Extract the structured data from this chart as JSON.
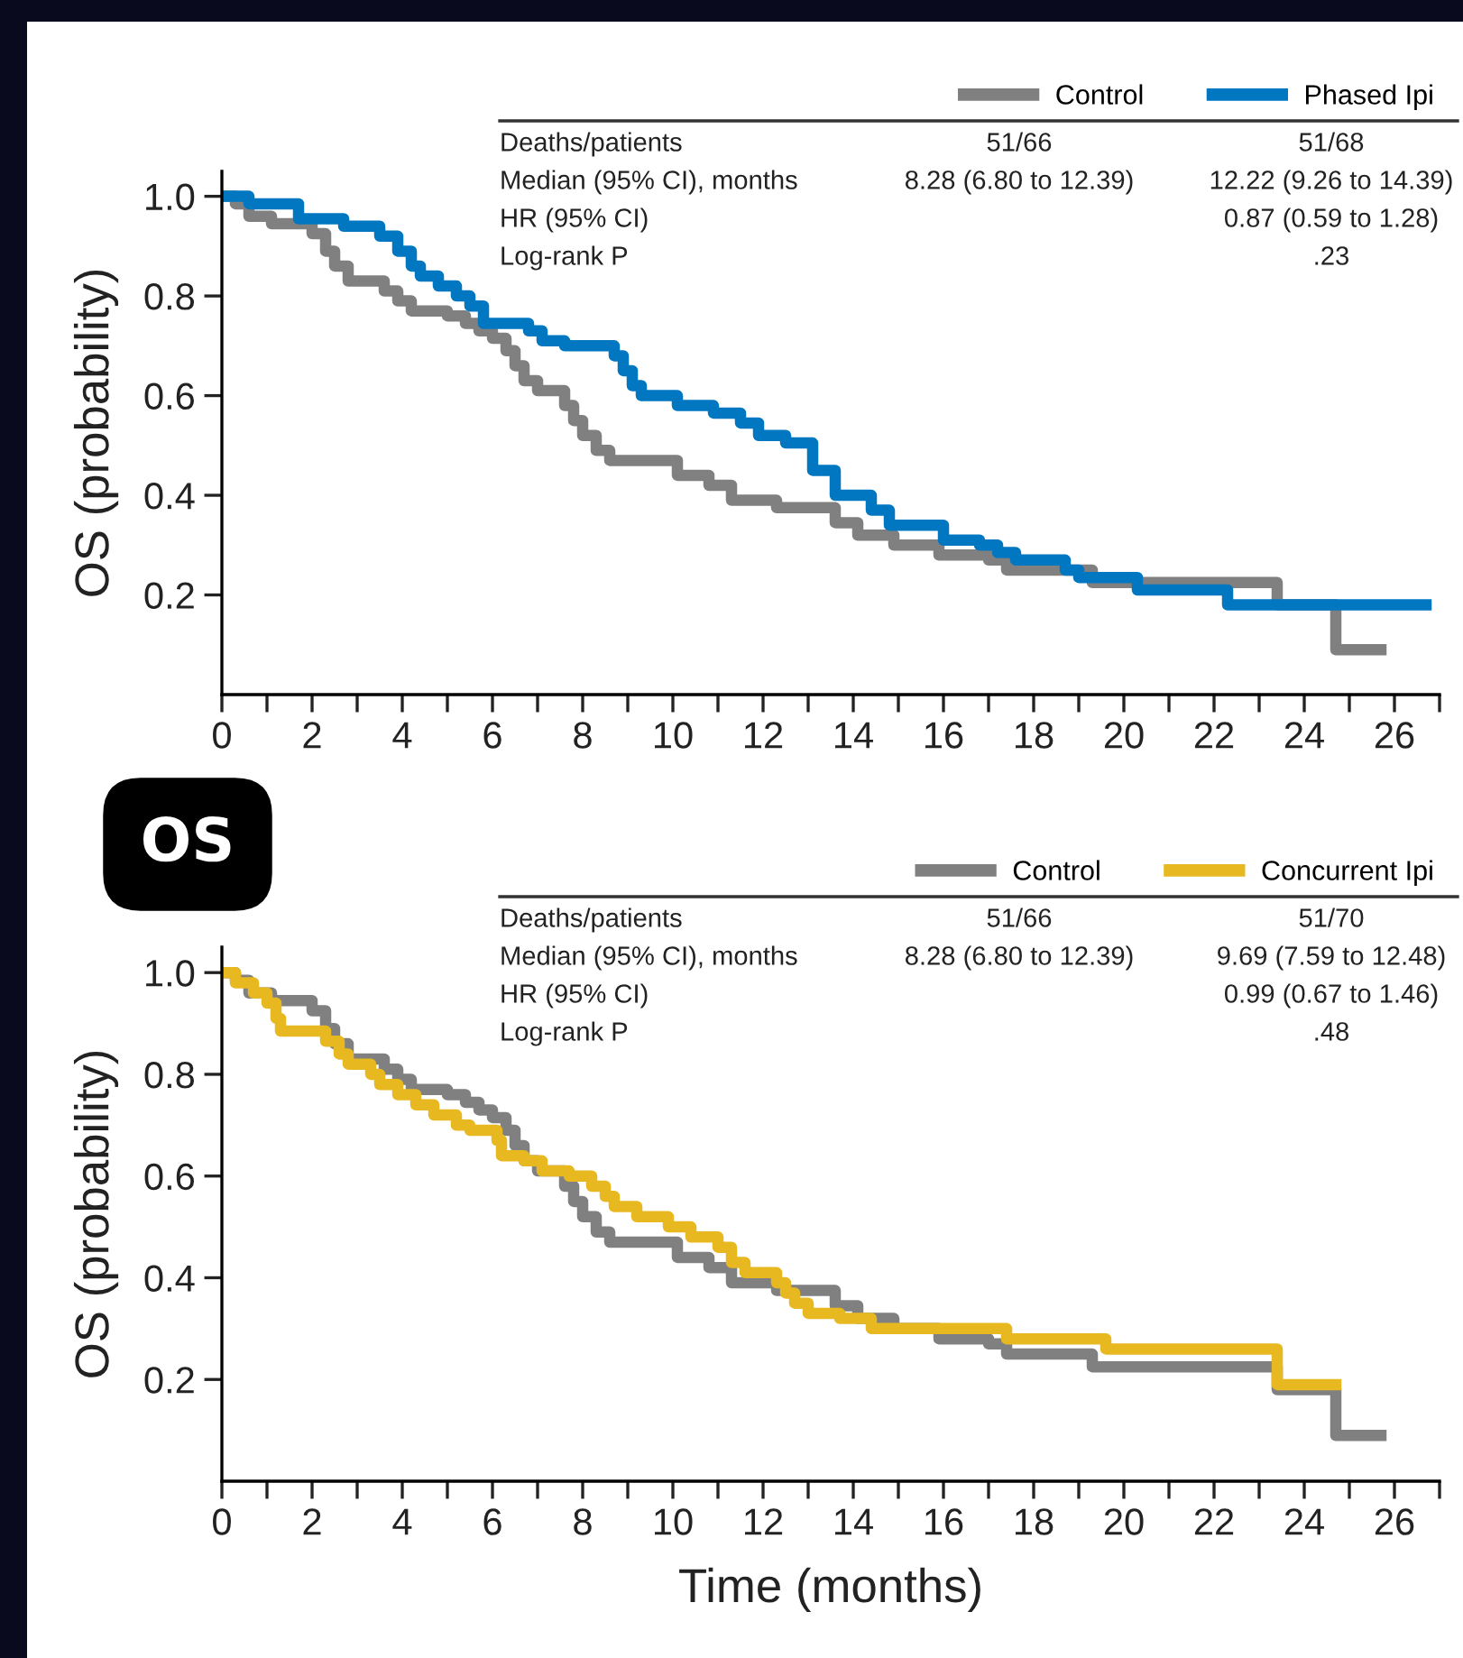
{
  "chart_data": [
    {
      "type": "step",
      "ylabel": "OS (probability)",
      "legend": "top right",
      "xlim": [
        0,
        27
      ],
      "ylim": [
        0,
        1.05
      ],
      "xticks": [
        0,
        {
          "value": 1,
          "label": null
        },
        2,
        {
          "value": 3,
          "label": null
        },
        4,
        {
          "value": 5,
          "label": null
        },
        6,
        {
          "value": 7,
          "label": null
        },
        8,
        {
          "value": 9,
          "label": null
        },
        10,
        {
          "value": 11,
          "label": null
        },
        12,
        {
          "value": 13,
          "label": null
        },
        14,
        {
          "value": 15,
          "label": null
        },
        16,
        {
          "value": 17,
          "label": null
        },
        18,
        {
          "value": 19,
          "label": null
        },
        20,
        {
          "value": 21,
          "label": null
        },
        22,
        {
          "value": 23,
          "label": null
        },
        24,
        {
          "value": 25,
          "label": null
        },
        26,
        {
          "value": 27,
          "label": null
        }
      ],
      "yticks": [
        {
          "value": 0.2,
          "label": "0.2"
        },
        {
          "value": 0.4,
          "label": "0.4"
        },
        {
          "value": 0.6,
          "label": "0.6"
        },
        {
          "value": 0.8,
          "label": "0.8"
        },
        {
          "value": 1.0,
          "label": "1.0"
        }
      ],
      "series": [
        {
          "name": "Control",
          "color": "#808080",
          "x": [
            0,
            0.3,
            0.6,
            1.1,
            2.0,
            2.3,
            2.5,
            2.8,
            3.6,
            3.9,
            4.2,
            5.0,
            5.4,
            5.7,
            6.0,
            6.3,
            6.5,
            6.7,
            7.0,
            7.6,
            7.8,
            8.0,
            8.3,
            8.6,
            10.1,
            10.8,
            11.3,
            12.3,
            13.6,
            14.1,
            14.9,
            15.9,
            17.0,
            17.4,
            19.3,
            23.4,
            24.7,
            25.7
          ],
          "values": [
            1.0,
            0.985,
            0.96,
            0.945,
            0.925,
            0.89,
            0.86,
            0.83,
            0.81,
            0.79,
            0.77,
            0.76,
            0.745,
            0.73,
            0.715,
            0.69,
            0.66,
            0.63,
            0.61,
            0.58,
            0.55,
            0.52,
            0.49,
            0.47,
            0.44,
            0.42,
            0.39,
            0.375,
            0.345,
            0.32,
            0.3,
            0.28,
            0.27,
            0.25,
            0.225,
            0.18,
            0.09,
            0.09
          ]
        },
        {
          "name": "Phased Ipi",
          "color": "#0077c0",
          "x": [
            0,
            0.6,
            1.7,
            2.7,
            3.5,
            3.9,
            4.2,
            4.4,
            4.8,
            5.2,
            5.5,
            5.8,
            6.8,
            7.1,
            7.6,
            8.7,
            8.9,
            9.1,
            9.3,
            10.1,
            10.9,
            11.5,
            11.9,
            12.5,
            13.1,
            13.6,
            14.4,
            14.8,
            16.0,
            16.8,
            17.2,
            17.6,
            18.7,
            19.0,
            20.3,
            22.3,
            26.7
          ],
          "values": [
            1.0,
            0.985,
            0.955,
            0.94,
            0.92,
            0.89,
            0.86,
            0.84,
            0.82,
            0.8,
            0.78,
            0.745,
            0.73,
            0.71,
            0.7,
            0.68,
            0.65,
            0.62,
            0.6,
            0.58,
            0.565,
            0.545,
            0.52,
            0.505,
            0.45,
            0.4,
            0.37,
            0.34,
            0.31,
            0.3,
            0.285,
            0.27,
            0.25,
            0.235,
            0.21,
            0.18,
            0.18
          ]
        }
      ],
      "annotations": [
        "Deaths/patients",
        "51/66",
        "51/68",
        "Median (95% CI), months",
        "8.28 (6.80 to 12.39)",
        "12.22 (9.26 to 14.39)",
        "HR (95% CI)",
        "0.87 (0.59 to 1.28)",
        "Log-rank P",
        ".23"
      ]
    },
    {
      "type": "step",
      "title": "OS",
      "ylabel": "OS (probability)",
      "xlabel": "Time (months)",
      "legend": "top right",
      "xlim": [
        0,
        27
      ],
      "ylim": [
        0,
        1.05
      ],
      "xticks": [
        0,
        {
          "value": 1,
          "label": null
        },
        2,
        {
          "value": 3,
          "label": null
        },
        4,
        {
          "value": 5,
          "label": null
        },
        6,
        {
          "value": 7,
          "label": null
        },
        8,
        {
          "value": 9,
          "label": null
        },
        10,
        {
          "value": 11,
          "label": null
        },
        12,
        {
          "value": 13,
          "label": null
        },
        14,
        {
          "value": 15,
          "label": null
        },
        16,
        {
          "value": 17,
          "label": null
        },
        18,
        {
          "value": 19,
          "label": null
        },
        20,
        {
          "value": 21,
          "label": null
        },
        22,
        {
          "value": 23,
          "label": null
        },
        24,
        {
          "value": 25,
          "label": null
        },
        26,
        {
          "value": 27,
          "label": null
        }
      ],
      "yticks": [
        {
          "value": 0.2,
          "label": "0.2"
        },
        {
          "value": 0.4,
          "label": "0.4"
        },
        {
          "value": 0.6,
          "label": "0.6"
        },
        {
          "value": 0.8,
          "label": "0.8"
        },
        {
          "value": 1.0,
          "label": "1.0"
        }
      ],
      "series": [
        {
          "name": "Control",
          "color": "#808080",
          "x": [
            0,
            0.3,
            0.6,
            1.1,
            2.0,
            2.3,
            2.5,
            2.8,
            3.6,
            3.9,
            4.2,
            5.0,
            5.4,
            5.7,
            6.0,
            6.3,
            6.5,
            6.7,
            7.0,
            7.6,
            7.8,
            8.0,
            8.3,
            8.6,
            10.1,
            10.8,
            11.3,
            12.3,
            13.6,
            14.1,
            14.9,
            15.9,
            17.0,
            17.4,
            19.3,
            23.4,
            24.7,
            25.7
          ],
          "values": [
            1.0,
            0.985,
            0.96,
            0.945,
            0.925,
            0.89,
            0.86,
            0.83,
            0.81,
            0.79,
            0.77,
            0.76,
            0.745,
            0.73,
            0.715,
            0.69,
            0.66,
            0.63,
            0.61,
            0.58,
            0.55,
            0.52,
            0.49,
            0.47,
            0.44,
            0.42,
            0.39,
            0.375,
            0.345,
            0.32,
            0.3,
            0.28,
            0.27,
            0.25,
            0.225,
            0.18,
            0.09,
            0.09
          ]
        },
        {
          "name": "Concurrent Ipi",
          "color": "#e8b820",
          "x": [
            0,
            0.3,
            0.7,
            1.0,
            1.2,
            1.3,
            2.3,
            2.6,
            2.8,
            3.3,
            3.5,
            3.9,
            4.3,
            4.7,
            5.2,
            5.5,
            6.1,
            6.2,
            6.7,
            7.1,
            7.7,
            8.2,
            8.5,
            8.7,
            9.2,
            9.9,
            10.4,
            11.0,
            11.3,
            11.6,
            12.3,
            12.5,
            12.7,
            13.0,
            13.7,
            14.4,
            17.4,
            19.6,
            23.4,
            24.7
          ],
          "values": [
            1.0,
            0.98,
            0.96,
            0.94,
            0.91,
            0.885,
            0.865,
            0.84,
            0.82,
            0.8,
            0.78,
            0.76,
            0.74,
            0.72,
            0.7,
            0.69,
            0.67,
            0.64,
            0.63,
            0.61,
            0.6,
            0.58,
            0.56,
            0.54,
            0.52,
            0.5,
            0.48,
            0.46,
            0.43,
            0.41,
            0.39,
            0.37,
            0.35,
            0.33,
            0.32,
            0.3,
            0.28,
            0.26,
            0.19,
            0.19
          ]
        }
      ],
      "annotations": [
        "Deaths/patients",
        "51/66",
        "51/70",
        "Median (95% CI), months",
        "8.28 (6.80 to 12.39)",
        "9.69 (7.59 to 12.48)",
        "HR (95% CI)",
        "0.99 (0.67 to 1.46)",
        "Log-rank P",
        ".48"
      ]
    }
  ]
}
